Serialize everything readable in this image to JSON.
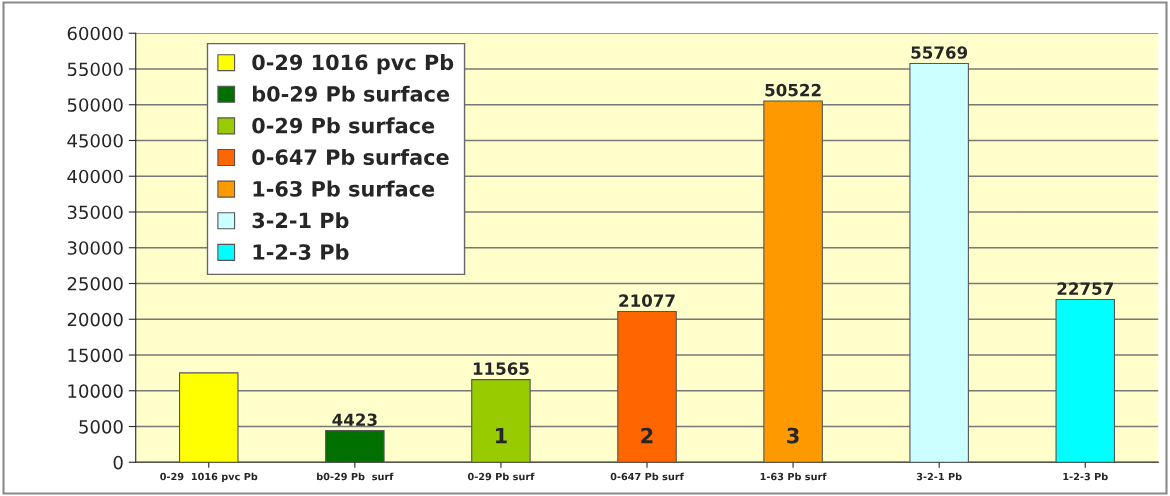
{
  "chart_data": {
    "type": "bar",
    "categories": [
      "0-29  1016 pvc Pb",
      "b0-29 Pb  surf",
      "0-29 Pb surf",
      "0-647 Pb surf",
      "1-63 Pb surf",
      "3-2-1 Pb",
      "1-2-3 Pb"
    ],
    "series": [
      {
        "name": "0-29 1016 pvc Pb",
        "color": "#ffff00",
        "values": [
          12500,
          null,
          null,
          null,
          null,
          null,
          null
        ],
        "value_labels": [
          null,
          null,
          null,
          null,
          null,
          null,
          null
        ]
      },
      {
        "name": "b0-29 Pb surface",
        "color": "#007000",
        "values": [
          null,
          4423,
          null,
          null,
          null,
          null,
          null
        ],
        "value_labels": [
          null,
          "4423",
          null,
          null,
          null,
          null,
          null
        ]
      },
      {
        "name": "0-29 Pb surface",
        "color": "#99cc00",
        "values": [
          null,
          null,
          11565,
          null,
          null,
          null,
          null
        ],
        "value_labels": [
          null,
          null,
          "11565",
          null,
          null,
          null,
          null
        ]
      },
      {
        "name": "0-647 Pb surface",
        "color": "#ff6600",
        "values": [
          null,
          null,
          null,
          21077,
          null,
          null,
          null
        ],
        "value_labels": [
          null,
          null,
          null,
          "21077",
          null,
          null,
          null
        ]
      },
      {
        "name": "1-63 Pb surface",
        "color": "#ff9900",
        "values": [
          null,
          null,
          null,
          null,
          50522,
          null,
          null
        ],
        "value_labels": [
          null,
          null,
          null,
          null,
          "50522",
          null,
          null
        ]
      },
      {
        "name": "3-2-1 Pb",
        "color": "#ccffff",
        "values": [
          null,
          null,
          null,
          null,
          null,
          55769,
          null
        ],
        "value_labels": [
          null,
          null,
          null,
          null,
          null,
          "55769",
          null
        ]
      },
      {
        "name": "1-2-3 Pb",
        "color": "#00ffff",
        "values": [
          null,
          null,
          null,
          null,
          null,
          null,
          22757
        ],
        "value_labels": [
          null,
          null,
          null,
          null,
          null,
          null,
          "22757"
        ]
      }
    ],
    "annotations": [
      "1",
      "2",
      "3"
    ],
    "ylim": [
      0,
      60000
    ],
    "yticks": [
      0,
      5000,
      10000,
      15000,
      20000,
      25000,
      30000,
      35000,
      40000,
      45000,
      50000,
      55000,
      60000
    ],
    "grid": "y",
    "legend": "top left"
  }
}
